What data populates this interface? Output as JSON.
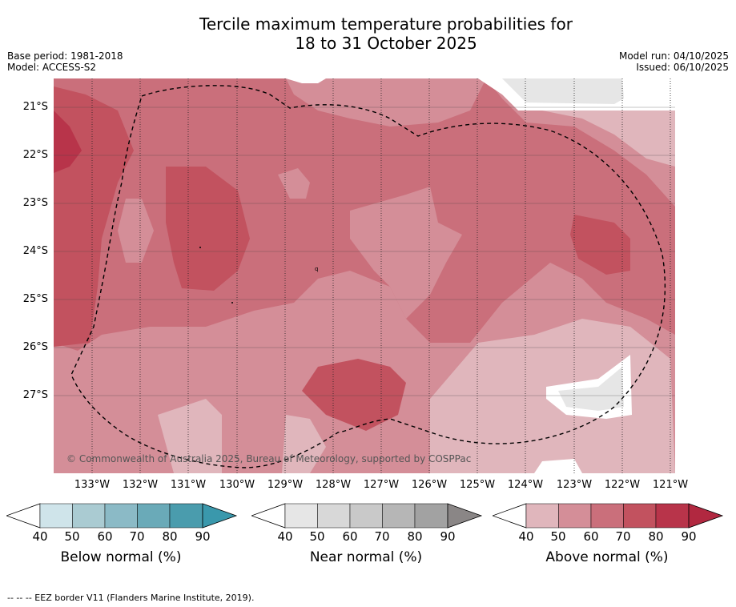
{
  "header": {
    "title_line1": "Tercile maximum temperature probabilities for",
    "title_line2": "18 to 31 October 2025",
    "base_period": "Base period: 1981-2018",
    "model": "Model: ACCESS-S2",
    "model_run": "Model run: 04/10/2025",
    "issued": "Issued: 06/10/2025"
  },
  "map": {
    "lat_labels": [
      "21°S",
      "22°S",
      "23°S",
      "24°S",
      "25°S",
      "26°S",
      "27°S"
    ],
    "lon_labels": [
      "133°W",
      "132°W",
      "131°W",
      "130°W",
      "129°W",
      "128°W",
      "127°W",
      "126°W",
      "125°W",
      "124°W",
      "123°W",
      "122°W",
      "121°W"
    ],
    "copyright": "© Commonwealth of Australia 2025, Bureau of Meteorology, supported by COSPPac"
  },
  "colorbars": [
    {
      "title": "Below normal (%)",
      "ticks": [
        "40",
        "50",
        "60",
        "70",
        "80",
        "90"
      ],
      "colors": [
        "#cfe4ea",
        "#aacbd2",
        "#8bbac6",
        "#6aaab8",
        "#4a9cad",
        "#3a98ac"
      ]
    },
    {
      "title": "Near normal (%)",
      "ticks": [
        "40",
        "50",
        "60",
        "70",
        "80",
        "90"
      ],
      "colors": [
        "#e6e6e6",
        "#d8d8d8",
        "#c9c9c9",
        "#b6b6b6",
        "#a2a2a2",
        "#8a8686"
      ]
    },
    {
      "title": "Above normal (%)",
      "ticks": [
        "40",
        "50",
        "60",
        "70",
        "80",
        "90"
      ],
      "colors": [
        "#e0b6bc",
        "#d48e98",
        "#ca6f7b",
        "#c2525f",
        "#b8344a",
        "#b12840"
      ]
    }
  ],
  "footnote": "--  --  -- EEZ border V11 (Flanders Marine Institute, 2019)."
}
